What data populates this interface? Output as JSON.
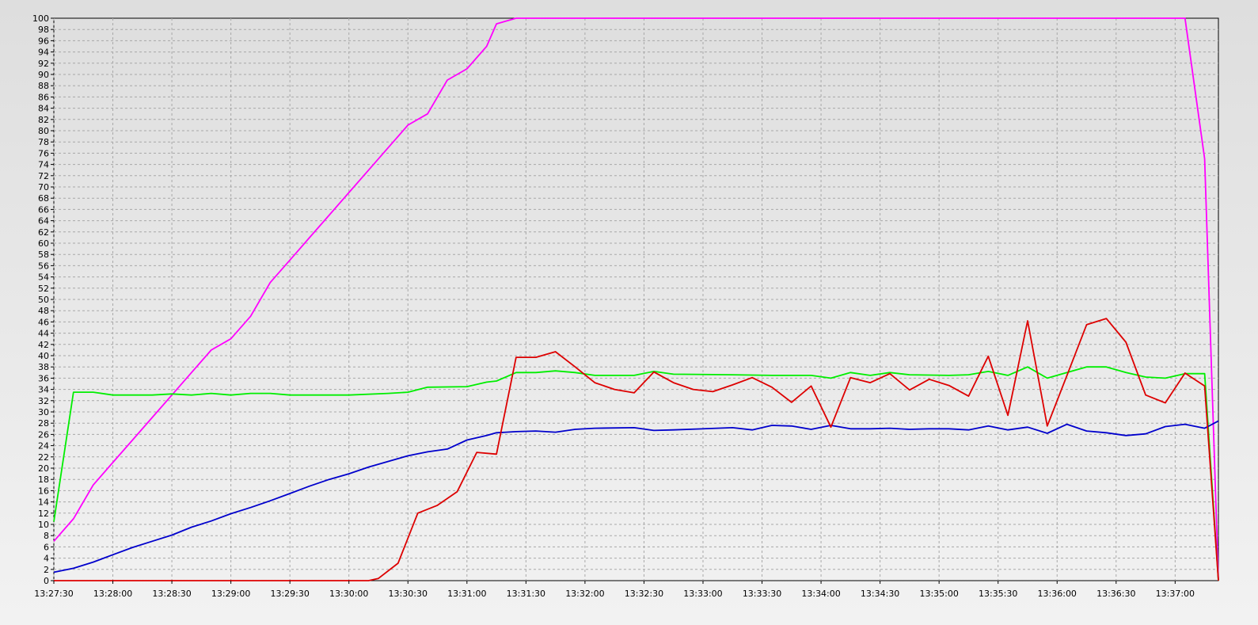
{
  "chart_data": {
    "type": "line",
    "title": "",
    "xlabel": "",
    "ylabel": "",
    "x_axis": {
      "type": "time",
      "range": [
        "13:27:30",
        "13:37:22"
      ],
      "tick_labels": [
        "13:27:30",
        "13:28:00",
        "13:28:30",
        "13:29:00",
        "13:29:30",
        "13:30:00",
        "13:30:30",
        "13:31:00",
        "13:31:30",
        "13:32:00",
        "13:32:30",
        "13:33:00",
        "13:33:30",
        "13:34:00",
        "13:34:30",
        "13:35:00",
        "13:35:30",
        "13:36:00",
        "13:36:30",
        "13:37:00"
      ]
    },
    "y_axis": {
      "ylim": [
        0,
        100
      ],
      "tick_labels": [
        "0",
        "2",
        "4",
        "6",
        "8",
        "10",
        "12",
        "14",
        "16",
        "18",
        "20",
        "22",
        "24",
        "26",
        "28",
        "30",
        "32",
        "34",
        "36",
        "38",
        "40",
        "42",
        "44",
        "46",
        "48",
        "50",
        "52",
        "54",
        "56",
        "58",
        "60",
        "62",
        "64",
        "66",
        "68",
        "70",
        "72",
        "74",
        "76",
        "78",
        "80",
        "82",
        "84",
        "86",
        "88",
        "90",
        "92",
        "94",
        "96",
        "98",
        "100"
      ]
    },
    "grid": true,
    "legend": "none",
    "series": [
      {
        "color": "#ff00ff",
        "points": [
          [
            "13:27:30",
            7
          ],
          [
            "13:27:40",
            11
          ],
          [
            "13:27:50",
            17
          ],
          [
            "13:28:00",
            21
          ],
          [
            "13:28:10",
            25
          ],
          [
            "13:28:20",
            29
          ],
          [
            "13:28:30",
            33
          ],
          [
            "13:28:40",
            37
          ],
          [
            "13:28:50",
            41
          ],
          [
            "13:29:00",
            43
          ],
          [
            "13:29:10",
            47
          ],
          [
            "13:29:20",
            53
          ],
          [
            "13:29:30",
            57
          ],
          [
            "13:29:40",
            61
          ],
          [
            "13:29:50",
            65
          ],
          [
            "13:30:00",
            69
          ],
          [
            "13:30:10",
            73
          ],
          [
            "13:30:20",
            77
          ],
          [
            "13:30:30",
            81
          ],
          [
            "13:30:40",
            83
          ],
          [
            "13:30:50",
            89
          ],
          [
            "13:31:00",
            91
          ],
          [
            "13:31:10",
            95
          ],
          [
            "13:31:15",
            99
          ],
          [
            "13:31:25",
            100
          ],
          [
            "13:37:05",
            100
          ],
          [
            "13:37:15",
            75
          ],
          [
            "13:37:22",
            0
          ]
        ]
      },
      {
        "color": "#00ee00",
        "points": [
          [
            "13:27:30",
            10.5
          ],
          [
            "13:27:40",
            33.5
          ],
          [
            "13:27:50",
            33.5
          ],
          [
            "13:28:00",
            33
          ],
          [
            "13:28:20",
            33
          ],
          [
            "13:28:30",
            33.2
          ],
          [
            "13:28:40",
            33
          ],
          [
            "13:28:50",
            33.3
          ],
          [
            "13:29:00",
            33
          ],
          [
            "13:29:10",
            33.3
          ],
          [
            "13:29:20",
            33.3
          ],
          [
            "13:29:30",
            33
          ],
          [
            "13:30:00",
            33
          ],
          [
            "13:30:20",
            33.3
          ],
          [
            "13:30:30",
            33.5
          ],
          [
            "13:30:40",
            34.4
          ],
          [
            "13:31:00",
            34.5
          ],
          [
            "13:31:10",
            35.3
          ],
          [
            "13:31:15",
            35.5
          ],
          [
            "13:31:25",
            37
          ],
          [
            "13:31:35",
            37
          ],
          [
            "13:31:45",
            37.3
          ],
          [
            "13:31:55",
            37
          ],
          [
            "13:32:05",
            36.5
          ],
          [
            "13:32:25",
            36.5
          ],
          [
            "13:32:35",
            37.2
          ],
          [
            "13:32:45",
            36.7
          ],
          [
            "13:33:15",
            36.6
          ],
          [
            "13:33:35",
            36.5
          ],
          [
            "13:33:55",
            36.5
          ],
          [
            "13:34:05",
            36
          ],
          [
            "13:34:15",
            37
          ],
          [
            "13:34:25",
            36.5
          ],
          [
            "13:34:35",
            37
          ],
          [
            "13:34:45",
            36.6
          ],
          [
            "13:35:05",
            36.5
          ],
          [
            "13:35:15",
            36.6
          ],
          [
            "13:35:25",
            37.2
          ],
          [
            "13:35:35",
            36.5
          ],
          [
            "13:35:45",
            38
          ],
          [
            "13:35:55",
            36
          ],
          [
            "13:36:05",
            37
          ],
          [
            "13:36:15",
            38
          ],
          [
            "13:36:25",
            38
          ],
          [
            "13:36:35",
            37
          ],
          [
            "13:36:45",
            36.2
          ],
          [
            "13:36:55",
            36
          ],
          [
            "13:37:05",
            36.8
          ],
          [
            "13:37:15",
            36.8
          ],
          [
            "13:37:22",
            0
          ]
        ]
      },
      {
        "color": "#0000cc",
        "points": [
          [
            "13:27:30",
            1.5
          ],
          [
            "13:27:40",
            2.2
          ],
          [
            "13:27:50",
            3.3
          ],
          [
            "13:28:00",
            4.6
          ],
          [
            "13:28:10",
            5.9
          ],
          [
            "13:28:20",
            7
          ],
          [
            "13:28:30",
            8.1
          ],
          [
            "13:28:40",
            9.5
          ],
          [
            "13:28:50",
            10.6
          ],
          [
            "13:29:00",
            11.9
          ],
          [
            "13:29:10",
            13
          ],
          [
            "13:29:20",
            14.2
          ],
          [
            "13:29:30",
            15.5
          ],
          [
            "13:29:40",
            16.8
          ],
          [
            "13:29:50",
            18
          ],
          [
            "13:30:00",
            19
          ],
          [
            "13:30:10",
            20.2
          ],
          [
            "13:30:20",
            21.2
          ],
          [
            "13:30:30",
            22.2
          ],
          [
            "13:30:40",
            22.9
          ],
          [
            "13:30:50",
            23.4
          ],
          [
            "13:31:00",
            25
          ],
          [
            "13:31:10",
            25.8
          ],
          [
            "13:31:15",
            26.3
          ],
          [
            "13:31:25",
            26.5
          ],
          [
            "13:31:35",
            26.6
          ],
          [
            "13:31:45",
            26.4
          ],
          [
            "13:31:55",
            26.9
          ],
          [
            "13:32:05",
            27.1
          ],
          [
            "13:32:25",
            27.2
          ],
          [
            "13:32:35",
            26.7
          ],
          [
            "13:32:45",
            26.8
          ],
          [
            "13:33:15",
            27.2
          ],
          [
            "13:33:25",
            26.8
          ],
          [
            "13:33:35",
            27.6
          ],
          [
            "13:33:45",
            27.5
          ],
          [
            "13:33:55",
            26.9
          ],
          [
            "13:34:05",
            27.6
          ],
          [
            "13:34:15",
            27
          ],
          [
            "13:34:25",
            27
          ],
          [
            "13:34:35",
            27.1
          ],
          [
            "13:34:45",
            26.9
          ],
          [
            "13:34:55",
            27
          ],
          [
            "13:35:05",
            27
          ],
          [
            "13:35:15",
            26.8
          ],
          [
            "13:35:25",
            27.5
          ],
          [
            "13:35:35",
            26.8
          ],
          [
            "13:35:45",
            27.3
          ],
          [
            "13:35:55",
            26.2
          ],
          [
            "13:36:05",
            27.8
          ],
          [
            "13:36:15",
            26.6
          ],
          [
            "13:36:25",
            26.3
          ],
          [
            "13:36:35",
            25.8
          ],
          [
            "13:36:45",
            26.1
          ],
          [
            "13:36:55",
            27.4
          ],
          [
            "13:37:05",
            27.8
          ],
          [
            "13:37:15",
            27.1
          ],
          [
            "13:37:22",
            28.4
          ]
        ]
      },
      {
        "color": "#dd0000",
        "points": [
          [
            "13:27:30",
            0
          ],
          [
            "13:30:00",
            0
          ],
          [
            "13:30:10",
            0
          ],
          [
            "13:30:15",
            0.4
          ],
          [
            "13:30:25",
            3.1
          ],
          [
            "13:30:35",
            12
          ],
          [
            "13:30:45",
            13.4
          ],
          [
            "13:30:55",
            15.8
          ],
          [
            "13:31:05",
            22.8
          ],
          [
            "13:31:15",
            22.5
          ],
          [
            "13:31:25",
            39.7
          ],
          [
            "13:31:35",
            39.7
          ],
          [
            "13:31:45",
            40.7
          ],
          [
            "13:31:55",
            38
          ],
          [
            "13:32:05",
            35.2
          ],
          [
            "13:32:15",
            34
          ],
          [
            "13:32:25",
            33.4
          ],
          [
            "13:32:35",
            37.1
          ],
          [
            "13:32:45",
            35.2
          ],
          [
            "13:32:55",
            34
          ],
          [
            "13:33:05",
            33.6
          ],
          [
            "13:33:15",
            34.8
          ],
          [
            "13:33:25",
            36.1
          ],
          [
            "13:33:35",
            34.4
          ],
          [
            "13:33:45",
            31.7
          ],
          [
            "13:33:55",
            34.6
          ],
          [
            "13:34:05",
            27.3
          ],
          [
            "13:34:15",
            36.1
          ],
          [
            "13:34:25",
            35.2
          ],
          [
            "13:34:35",
            36.8
          ],
          [
            "13:34:45",
            33.9
          ],
          [
            "13:34:55",
            35.8
          ],
          [
            "13:35:05",
            34.7
          ],
          [
            "13:35:15",
            32.8
          ],
          [
            "13:35:25",
            39.9
          ],
          [
            "13:35:35",
            29.4
          ],
          [
            "13:35:45",
            46.2
          ],
          [
            "13:35:55",
            27.5
          ],
          [
            "13:36:05",
            36.5
          ],
          [
            "13:36:15",
            45.5
          ],
          [
            "13:36:25",
            46.6
          ],
          [
            "13:36:35",
            42.4
          ],
          [
            "13:36:45",
            33
          ],
          [
            "13:36:55",
            31.6
          ],
          [
            "13:37:05",
            36.9
          ],
          [
            "13:37:15",
            34.6
          ],
          [
            "13:37:22",
            0
          ]
        ]
      }
    ]
  }
}
